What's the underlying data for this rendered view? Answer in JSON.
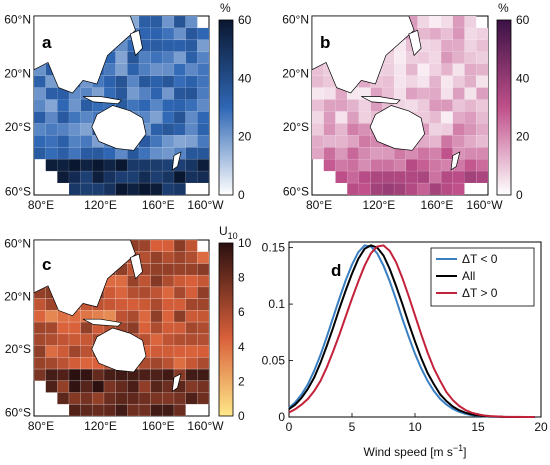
{
  "panels": {
    "a": {
      "letter": "a",
      "unit": "%"
    },
    "b": {
      "letter": "b",
      "unit": "%"
    },
    "c": {
      "letter": "c",
      "unit": "U",
      "unit_sub": "10"
    },
    "d": {
      "letter": "d"
    }
  },
  "map_axes": {
    "lat_ticks": [
      "60°N",
      "20°N",
      "20°S",
      "60°S"
    ],
    "lon_ticks": [
      "80°E",
      "120°E",
      "160°E",
      "160°W"
    ]
  },
  "colorbars": {
    "a": {
      "ticks": [
        "60",
        "40",
        "20",
        "0"
      ],
      "colors": [
        "#ffffff",
        "#2f67b5",
        "#0a1730"
      ]
    },
    "b": {
      "ticks": [
        "60",
        "40",
        "20",
        "0"
      ],
      "colors": [
        "#ffffff",
        "#c0508a",
        "#3b1145"
      ]
    },
    "c": {
      "ticks": [
        "10",
        "8",
        "6",
        "4",
        "2",
        "0"
      ],
      "colors": [
        "#ffe98a",
        "#d9603a",
        "#2b1010"
      ]
    }
  },
  "colors": {
    "all": "#000000",
    "neg": "#3a7fc1",
    "pos": "#c4223a",
    "land": "#ffffff",
    "coast": "#000000",
    "ocean_a": "#5d8fd1",
    "ocean_b": "#e6a3c6",
    "ocean_c": "#b0453a"
  },
  "chart_data": [
    {
      "type": "heatmap",
      "panel": "a",
      "description_unit": "%",
      "colorbar_range": [
        0,
        60
      ],
      "colorbar_ticks": [
        0,
        20,
        40,
        60
      ]
    },
    {
      "type": "heatmap",
      "panel": "b",
      "colorbar_range": [
        0,
        60
      ],
      "colorbar_ticks": [
        0,
        20,
        40,
        60
      ]
    },
    {
      "type": "heatmap",
      "panel": "c",
      "colorbar_range": [
        0,
        10
      ],
      "colorbar_ticks": [
        0,
        2,
        4,
        6,
        8,
        10
      ]
    },
    {
      "type": "line",
      "panel": "d",
      "xlabel": "Wind speed [m s",
      "xlabel_sup": "−1",
      "xlabel_end": "]",
      "xlim": [
        0,
        20
      ],
      "ylim": [
        0,
        0.155
      ],
      "x_ticks": [
        0,
        5,
        10,
        15,
        20
      ],
      "y_ticks": [
        0,
        0.05,
        0.1,
        0.15
      ],
      "y_tick_labels": [
        "0",
        "0.05",
        "0.1",
        "0.15"
      ],
      "legend_position": "top-right",
      "x": [
        0,
        0.5,
        1,
        1.5,
        2,
        2.5,
        3,
        3.5,
        4,
        4.5,
        5,
        5.5,
        6,
        6.5,
        7,
        7.5,
        8,
        8.5,
        9,
        9.5,
        10,
        10.5,
        11,
        11.5,
        12,
        12.5,
        13,
        13.5,
        14,
        14.5,
        15,
        15.5,
        16,
        17,
        18,
        19,
        19.5
      ],
      "series": [
        {
          "name": "ΔT < 0",
          "key": "neg",
          "values": [
            0.008,
            0.013,
            0.02,
            0.029,
            0.041,
            0.055,
            0.071,
            0.088,
            0.105,
            0.121,
            0.135,
            0.146,
            0.152,
            0.151,
            0.145,
            0.134,
            0.12,
            0.104,
            0.087,
            0.071,
            0.056,
            0.043,
            0.032,
            0.023,
            0.016,
            0.011,
            0.0072,
            0.0046,
            0.0028,
            0.0017,
            0.001,
            0.0006,
            0.0003,
            0.0001,
            0,
            0,
            0
          ]
        },
        {
          "name": "All",
          "key": "all",
          "values": [
            0.007,
            0.011,
            0.017,
            0.025,
            0.035,
            0.048,
            0.063,
            0.079,
            0.096,
            0.112,
            0.127,
            0.14,
            0.149,
            0.152,
            0.15,
            0.143,
            0.131,
            0.116,
            0.1,
            0.083,
            0.067,
            0.052,
            0.039,
            0.029,
            0.02,
            0.014,
            0.0093,
            0.006,
            0.0038,
            0.0023,
            0.0014,
            0.0008,
            0.0005,
            0.0001,
            0,
            0,
            0
          ]
        },
        {
          "name": "ΔT > 0",
          "key": "pos",
          "values": [
            0.004,
            0.007,
            0.011,
            0.016,
            0.023,
            0.032,
            0.044,
            0.058,
            0.073,
            0.089,
            0.105,
            0.12,
            0.134,
            0.145,
            0.151,
            0.152,
            0.147,
            0.137,
            0.123,
            0.107,
            0.09,
            0.073,
            0.057,
            0.043,
            0.032,
            0.022,
            0.015,
            0.0098,
            0.0062,
            0.0038,
            0.0023,
            0.0013,
            0.0008,
            0.0002,
            0.0001,
            0,
            0
          ]
        }
      ]
    }
  ]
}
